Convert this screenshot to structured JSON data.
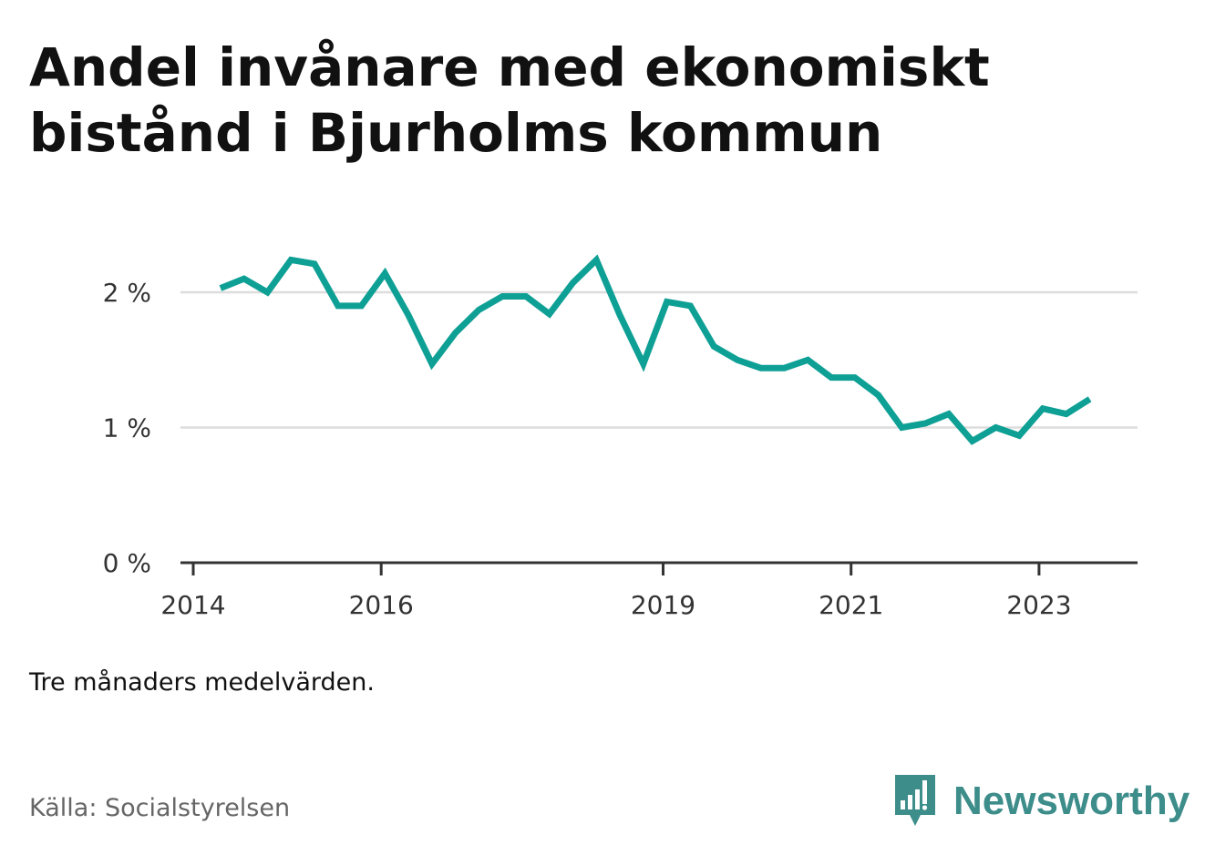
{
  "title": "Andel invånare med ekonomiskt bistånd i Bjurholms kommun",
  "note": "Tre månaders medelvärden.",
  "source": "Källa: Socialstyrelsen",
  "brand": {
    "name": "Newsworthy",
    "logo_icon": "bar-chart-speech-bubble-icon",
    "color": "#3d8d8b"
  },
  "colors": {
    "line": "#0fa095",
    "grid": "#dddddd",
    "axis": "#333333"
  },
  "chart_data": {
    "type": "line",
    "title": "Andel invånare med ekonomiskt bistånd i Bjurholms kommun",
    "xlabel": "",
    "ylabel": "",
    "xlim": [
      2014.0,
      2024.0
    ],
    "ylim": [
      0,
      2.2
    ],
    "y_ticks": [
      0,
      1,
      2
    ],
    "y_tick_labels": [
      "0 %",
      "1 %",
      "2 %"
    ],
    "x_ticks": [
      2014,
      2016,
      2019,
      2021,
      2023
    ],
    "x_tick_labels": [
      "2014",
      "2016",
      "2019",
      "2021",
      "2023"
    ],
    "grid": true,
    "legend": "none",
    "series": [
      {
        "x": [
          2014.29,
          2014.54,
          2014.79,
          2015.04,
          2015.29,
          2015.54,
          2015.79,
          2016.04,
          2016.29,
          2016.54,
          2016.79,
          2017.04,
          2017.29,
          2017.54,
          2017.79,
          2018.04,
          2018.29,
          2018.54,
          2018.79,
          2019.04,
          2019.29,
          2019.54,
          2019.79,
          2020.04,
          2020.29,
          2020.54,
          2020.79,
          2021.04,
          2021.29,
          2021.54,
          2021.79,
          2022.04,
          2022.29,
          2022.54,
          2022.79,
          2023.04,
          2023.29,
          2023.54
        ],
        "values": [
          2.03,
          2.1,
          2.0,
          2.24,
          2.21,
          1.9,
          1.9,
          2.14,
          1.83,
          1.47,
          1.7,
          1.87,
          1.97,
          1.97,
          1.84,
          2.07,
          2.24,
          1.83,
          1.47,
          1.93,
          1.9,
          1.6,
          1.5,
          1.44,
          1.44,
          1.5,
          1.37,
          1.37,
          1.24,
          1.0,
          1.03,
          1.1,
          0.9,
          1.0,
          0.94,
          1.14,
          1.1,
          1.21
        ]
      }
    ]
  }
}
